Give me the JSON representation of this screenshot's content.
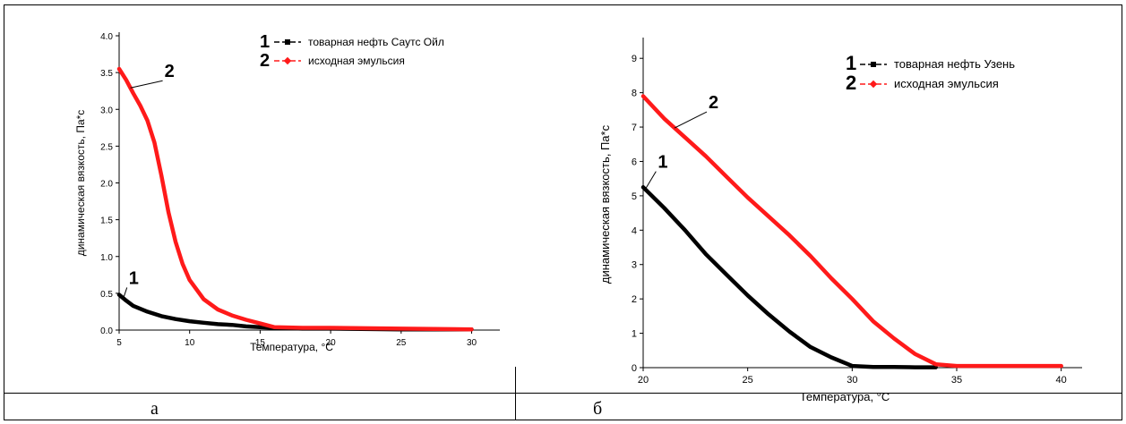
{
  "captions": {
    "a": "а",
    "b": "б"
  },
  "colors": {
    "series1": "#000000",
    "series2": "#ff1a1a"
  },
  "chart_data": [
    {
      "type": "line",
      "title": "",
      "xlabel": "Температура, °С",
      "ylabel": "динамическая вязкость, Па*с",
      "xlim": [
        5,
        32
      ],
      "ylim": [
        0,
        4.0
      ],
      "xticks": [
        "5",
        "10",
        "15",
        "20",
        "25",
        "30"
      ],
      "yticks": [
        "0.0",
        "0.5",
        "1.0",
        "1.5",
        "2.0",
        "2.5",
        "3.0",
        "3.5",
        "4.0"
      ],
      "legend": [
        {
          "num": "1",
          "text": "товарная нефть Саутс Ойл"
        },
        {
          "num": "2",
          "text": "исходная эмульсия"
        }
      ],
      "annotations": [
        {
          "text": "1",
          "series": 0,
          "at_x": 5.3
        },
        {
          "text": "2",
          "series": 1,
          "at_x": 5.8
        }
      ],
      "series": [
        {
          "name": "товарная нефть Саутс Ойл",
          "x": [
            5,
            5.5,
            6,
            7,
            8,
            9,
            10,
            11,
            12,
            13,
            14,
            15,
            16,
            18,
            20,
            25,
            30
          ],
          "y": [
            0.48,
            0.4,
            0.33,
            0.25,
            0.19,
            0.15,
            0.12,
            0.1,
            0.08,
            0.07,
            0.05,
            0.04,
            0.03,
            0.02,
            0.02,
            0.01,
            0.01
          ]
        },
        {
          "name": "исходная эмульсия",
          "x": [
            5,
            5.5,
            6,
            6.5,
            7,
            7.5,
            8,
            8.5,
            9,
            9.5,
            10,
            11,
            12,
            13,
            14,
            15,
            16,
            18,
            20,
            25,
            30
          ],
          "y": [
            3.55,
            3.4,
            3.22,
            3.05,
            2.85,
            2.55,
            2.1,
            1.6,
            1.2,
            0.9,
            0.68,
            0.42,
            0.28,
            0.2,
            0.14,
            0.09,
            0.04,
            0.03,
            0.03,
            0.02,
            0.01
          ]
        }
      ]
    },
    {
      "type": "line",
      "title": "",
      "xlabel": "Температура, °С",
      "ylabel": "динамическая вязкость, Па*с",
      "xlim": [
        20,
        41
      ],
      "ylim": [
        0,
        9.5
      ],
      "xticks": [
        "20",
        "25",
        "30",
        "35",
        "40"
      ],
      "yticks": [
        "0",
        "1",
        "2",
        "3",
        "4",
        "5",
        "6",
        "7",
        "8",
        "9"
      ],
      "legend": [
        {
          "num": "1",
          "text": "товарная нефть Узень"
        },
        {
          "num": "2",
          "text": "исходная эмульсия"
        }
      ],
      "annotations": [
        {
          "text": "1",
          "series": 0,
          "at_x": 20.1
        },
        {
          "text": "2",
          "series": 1,
          "at_x": 21.5
        }
      ],
      "series": [
        {
          "name": "товарная нефть Узень",
          "x": [
            20,
            21,
            22,
            23,
            24,
            25,
            26,
            27,
            28,
            29,
            30,
            31,
            32,
            33,
            34
          ],
          "y": [
            5.25,
            4.65,
            4.0,
            3.3,
            2.7,
            2.1,
            1.55,
            1.05,
            0.6,
            0.3,
            0.05,
            0.02,
            0.02,
            0.01,
            0.01
          ]
        },
        {
          "name": "исходная эмульсия",
          "x": [
            20,
            21,
            22,
            23,
            24,
            25,
            26,
            27,
            28,
            29,
            30,
            31,
            32,
            33,
            34,
            35,
            36,
            38,
            40
          ],
          "y": [
            7.9,
            7.25,
            6.7,
            6.15,
            5.55,
            4.95,
            4.4,
            3.85,
            3.25,
            2.6,
            2.0,
            1.35,
            0.85,
            0.4,
            0.1,
            0.05,
            0.05,
            0.05,
            0.05
          ]
        }
      ]
    }
  ]
}
